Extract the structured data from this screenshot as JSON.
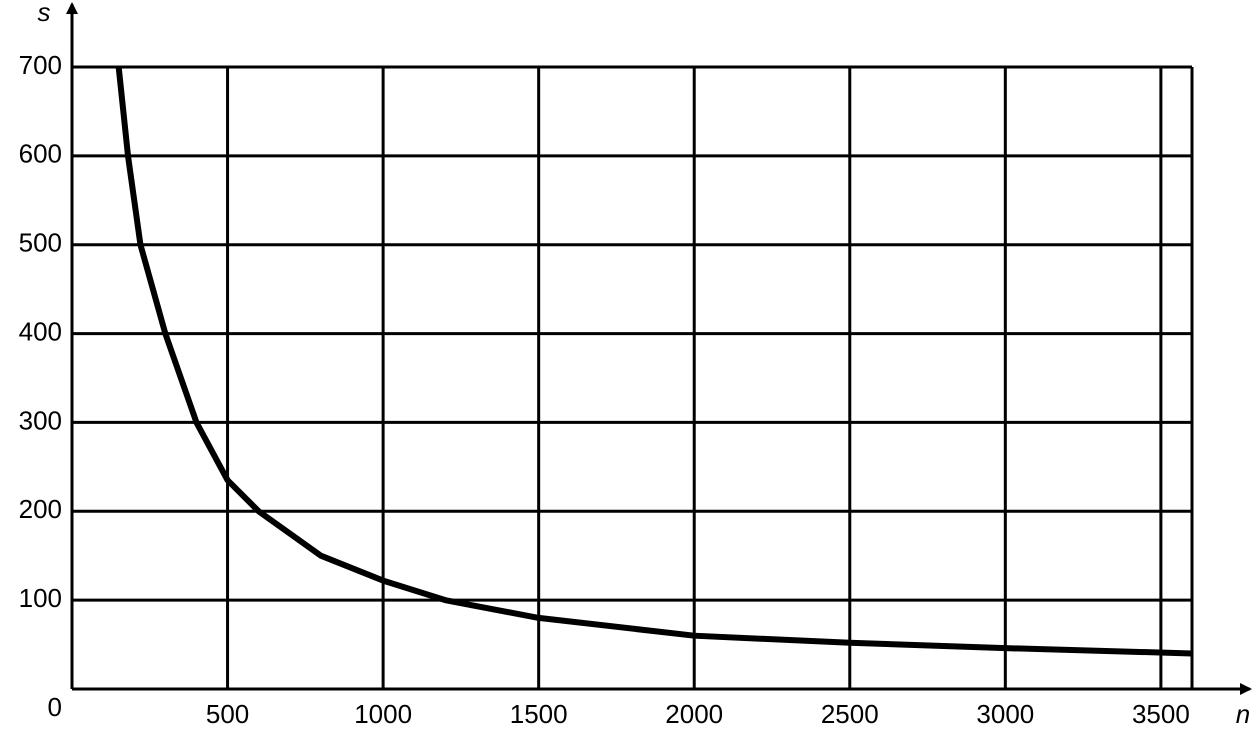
{
  "chart_data": {
    "type": "line",
    "x_label": "n",
    "y_label": "s",
    "x": [
      150,
      180,
      220,
      300,
      400,
      500,
      600,
      800,
      1000,
      1200,
      1500,
      2000,
      2500,
      3000,
      3600
    ],
    "series": [
      {
        "color": "#000000",
        "values": [
          700,
          600,
          500,
          400,
          300,
          235,
          200,
          150,
          122,
          100,
          80,
          60,
          52,
          46,
          40
        ]
      }
    ],
    "xlim": [
      0,
      3600
    ],
    "ylim": [
      0,
      700
    ],
    "xticks": [
      500,
      1000,
      1500,
      2000,
      2500,
      3000,
      3500
    ],
    "yticks": [
      0,
      100,
      200,
      300,
      400,
      500,
      600,
      700
    ],
    "grid": true
  }
}
